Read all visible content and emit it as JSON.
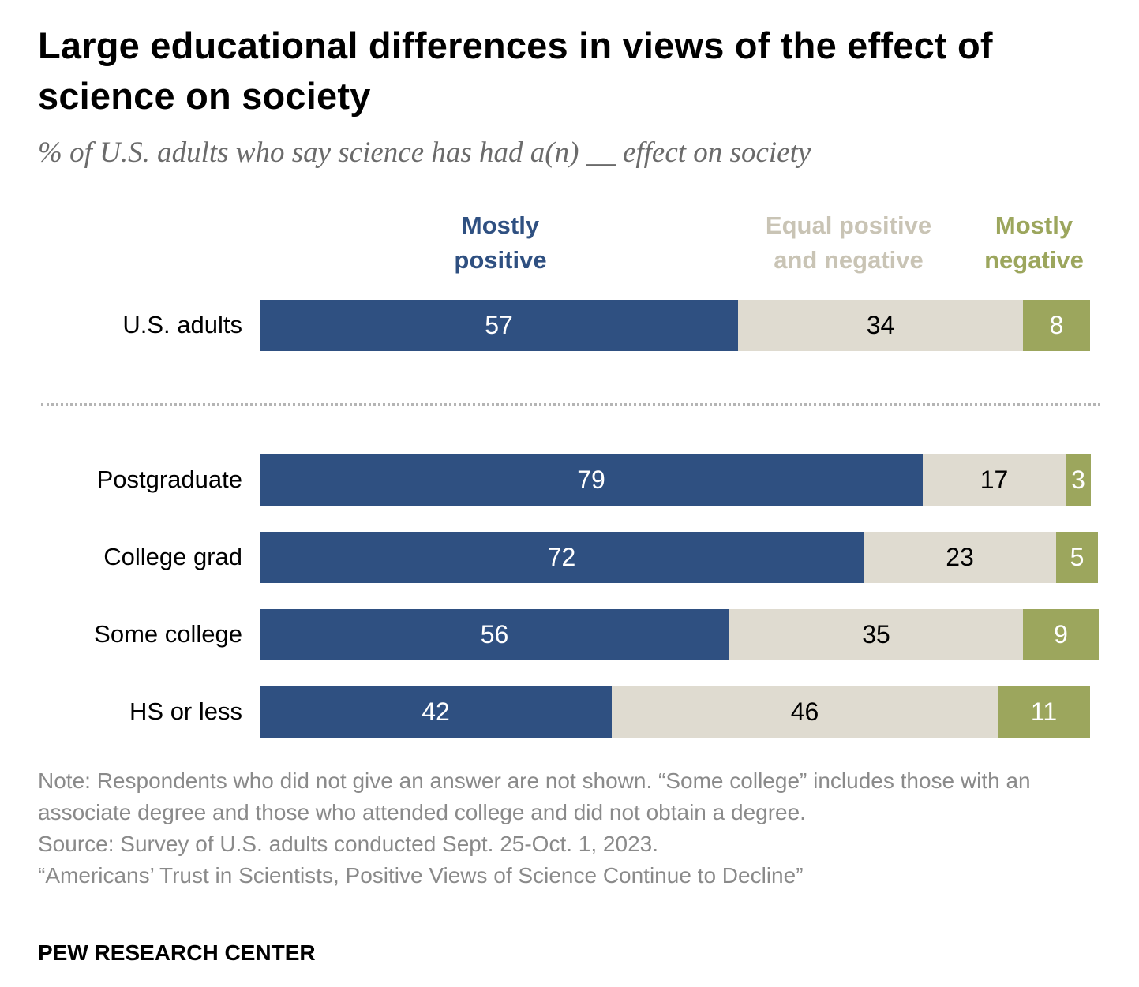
{
  "chart_data": {
    "type": "bar",
    "orientation": "horizontal-stacked",
    "title": "Large educational differences in views of the effect of science on society",
    "subtitle": "% of U.S. adults who say science has had a(n) __ effect on society",
    "categories": [
      "U.S. adults",
      "Postgraduate",
      "College grad",
      "Some college",
      "HS or less"
    ],
    "series": [
      {
        "name": "Mostly positive",
        "color": "#2f5081",
        "text_color": "#ffffff",
        "values": [
          57,
          79,
          72,
          56,
          42
        ]
      },
      {
        "name": "Equal positive and negative",
        "color": "#dfdbd0",
        "text_color": "#000000",
        "values": [
          34,
          17,
          23,
          35,
          46
        ]
      },
      {
        "name": "Mostly negative",
        "color": "#9ca65d",
        "text_color": "#ffffff",
        "values": [
          8,
          3,
          5,
          9,
          11
        ]
      }
    ],
    "legend": [
      {
        "label": "Mostly\npositive",
        "color": "#2f5081"
      },
      {
        "label": "Equal positive\nand negative",
        "color": "#c9c4b5"
      },
      {
        "label": "Mostly\nnegative",
        "color": "#9ca65d"
      }
    ],
    "legend_position": "top",
    "grid": false,
    "xlim": [
      0,
      100
    ],
    "separator_after_category": "U.S. adults"
  },
  "notes": {
    "note": "Note: Respondents who did not give an answer are not shown. “Some college” includes those with an associate degree and those who attended college and did not obtain a degree.",
    "source": "Source: Survey of U.S. adults conducted Sept. 25-Oct. 1, 2023.",
    "report": "“Americans’ Trust in Scientists, Positive Views of Science Continue to Decline”"
  },
  "brand": "PEW RESEARCH CENTER"
}
